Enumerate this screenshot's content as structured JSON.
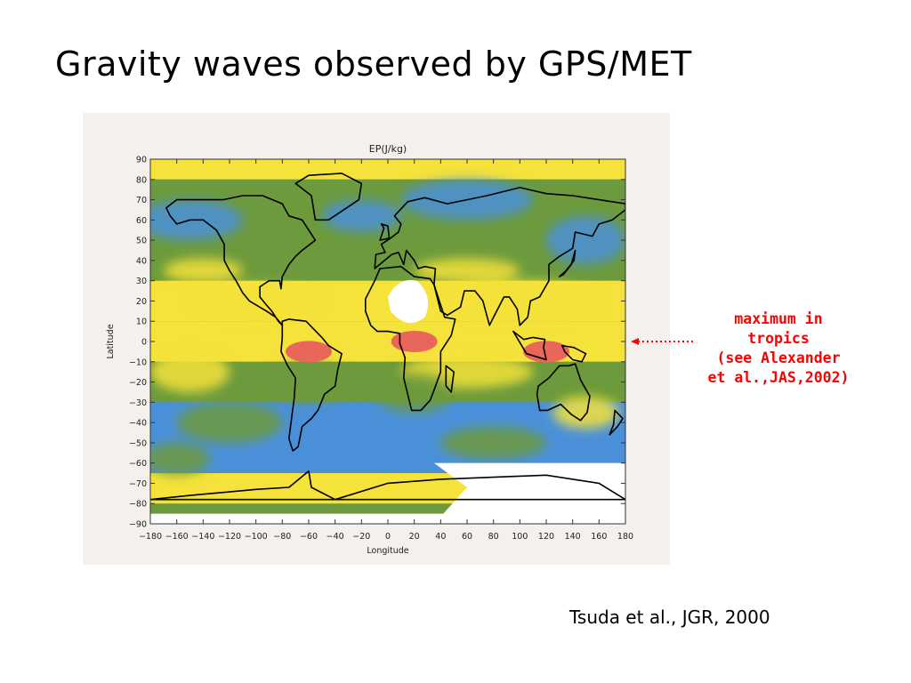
{
  "slide": {
    "title": "Gravity waves observed by GPS/MET",
    "citation": "Tsuda et al., JGR, 2000"
  },
  "annotation": {
    "lines": [
      "maximum in",
      "tropics",
      "(see Alexander",
      "et al.,JAS,2002)"
    ],
    "color": "#ff0000",
    "arrow_target_latitude": 0
  },
  "chart_data": {
    "type": "heatmap",
    "title": "EP(J/kg)",
    "xlabel": "Longitude",
    "ylabel": "Latitude",
    "xlim": [
      -180,
      180
    ],
    "ylim": [
      -90,
      90
    ],
    "xticks": [
      -180,
      -160,
      -140,
      -120,
      -100,
      -80,
      -60,
      -40,
      -20,
      0,
      20,
      40,
      60,
      80,
      100,
      120,
      140,
      160,
      180
    ],
    "yticks": [
      90,
      80,
      70,
      60,
      50,
      40,
      30,
      20,
      10,
      0,
      -10,
      -20,
      -30,
      -40,
      -50,
      -60,
      -70,
      -80,
      -90
    ],
    "colors": {
      "low": "#4a90d9",
      "low_mid": "#6c9a3c",
      "mid": "#f5e23a",
      "high": "#e8665a",
      "no_data": "#ffffff",
      "coastline": "#000000"
    },
    "latitude_bands": [
      {
        "lat_range": [
          80,
          90
        ],
        "level": "mid"
      },
      {
        "lat_range": [
          50,
          80
        ],
        "level": "low_mid"
      },
      {
        "lat_range": [
          30,
          50
        ],
        "level": "low_mid"
      },
      {
        "lat_range": [
          10,
          30
        ],
        "level": "mid"
      },
      {
        "lat_range": [
          -10,
          10
        ],
        "level": "mid"
      },
      {
        "lat_range": [
          -30,
          -10
        ],
        "level": "low_mid"
      },
      {
        "lat_range": [
          -65,
          -30
        ],
        "level": "low"
      },
      {
        "lat_range": [
          -80,
          -65
        ],
        "level": "mid"
      }
    ],
    "maxima": [
      {
        "lon": 120,
        "lat": -5,
        "level": "high"
      },
      {
        "lon": -60,
        "lat": -5,
        "level": "high"
      },
      {
        "lon": 20,
        "lat": 0,
        "level": "high"
      }
    ],
    "no_data_regions": [
      {
        "lon": 15,
        "lat": 20,
        "label": ""
      },
      {
        "lon": 120,
        "lat": -80,
        "label": ""
      }
    ]
  }
}
